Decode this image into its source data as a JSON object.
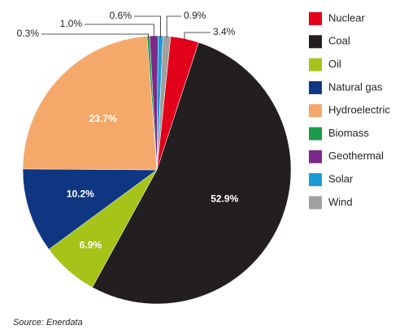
{
  "chart_data": {
    "type": "pie",
    "categories": [
      "Nuclear",
      "Coal",
      "Oil",
      "Natural gas",
      "Hydroelectric",
      "Biomass",
      "Geothermal",
      "Solar",
      "Wind"
    ],
    "values": [
      3.4,
      52.9,
      6.9,
      10.2,
      23.7,
      0.3,
      1.0,
      0.6,
      0.9
    ],
    "value_labels": [
      "3.4%",
      "52.9%",
      "6.9%",
      "10.2%",
      "23.7%",
      "0.3%",
      "1.0%",
      "0.6%",
      "0.9%"
    ],
    "colors": [
      "#e2001a",
      "#231f20",
      "#a6c31a",
      "#0f3781",
      "#f4a96a",
      "#1a9a4a",
      "#7b2a8a",
      "#1e9ad6",
      "#a0a0a0"
    ],
    "legend": "right",
    "source": "Source: Enerdata"
  }
}
